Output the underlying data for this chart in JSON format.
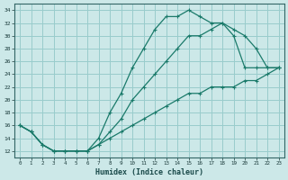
{
  "xlabel": "Humidex (Indice chaleur)",
  "bg_color": "#cce8e8",
  "grid_color": "#99cccc",
  "line_color": "#1a7a6a",
  "xlim": [
    -0.5,
    23.5
  ],
  "ylim": [
    11,
    35
  ],
  "xticks": [
    0,
    1,
    2,
    3,
    4,
    5,
    6,
    7,
    8,
    9,
    10,
    11,
    12,
    13,
    14,
    15,
    16,
    17,
    18,
    19,
    20,
    21,
    22,
    23
  ],
  "yticks": [
    12,
    14,
    16,
    18,
    20,
    22,
    24,
    26,
    28,
    30,
    32,
    34
  ],
  "line1_x": [
    0,
    1,
    2,
    3,
    4,
    5,
    6,
    7,
    8,
    9,
    10,
    11,
    12,
    13,
    14,
    15,
    16,
    17,
    18,
    19,
    20,
    21,
    22,
    23
  ],
  "line1_y": [
    16,
    15,
    13,
    12,
    12,
    12,
    12,
    14,
    18,
    21,
    25,
    28,
    31,
    33,
    33,
    34,
    33,
    32,
    32,
    30,
    25,
    25,
    25,
    25
  ],
  "line2_x": [
    0,
    1,
    2,
    3,
    4,
    5,
    6,
    7,
    8,
    9,
    10,
    11,
    12,
    13,
    14,
    15,
    16,
    17,
    18,
    19,
    20,
    21,
    22,
    23
  ],
  "line2_y": [
    16,
    15,
    13,
    12,
    12,
    12,
    12,
    13,
    15,
    17,
    20,
    22,
    24,
    26,
    28,
    30,
    30,
    31,
    32,
    31,
    30,
    28,
    25,
    25
  ],
  "line3_x": [
    0,
    1,
    2,
    3,
    4,
    5,
    6,
    7,
    8,
    9,
    10,
    11,
    12,
    13,
    14,
    15,
    16,
    17,
    18,
    19,
    20,
    21,
    22,
    23
  ],
  "line3_y": [
    16,
    15,
    13,
    12,
    12,
    12,
    12,
    13,
    14,
    15,
    16,
    17,
    18,
    19,
    20,
    21,
    21,
    22,
    22,
    22,
    23,
    23,
    24,
    25
  ]
}
